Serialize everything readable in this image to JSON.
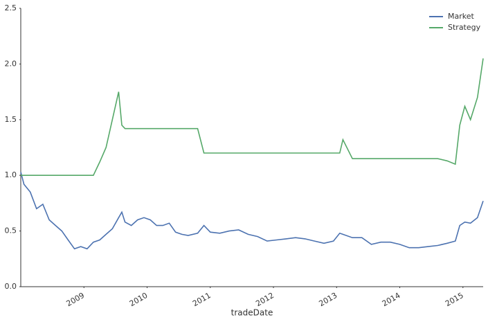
{
  "chart_data": {
    "type": "line",
    "x_label": "tradeDate",
    "x": [
      2008.0,
      2008.05,
      2008.15,
      2008.25,
      2008.35,
      2008.45,
      2008.55,
      2008.65,
      2008.75,
      2008.85,
      2008.95,
      2009.05,
      2009.15,
      2009.25,
      2009.35,
      2009.45,
      2009.55,
      2009.6,
      2009.65,
      2009.75,
      2009.85,
      2009.95,
      2010.05,
      2010.15,
      2010.25,
      2010.35,
      2010.45,
      2010.55,
      2010.65,
      2010.8,
      2010.9,
      2011.0,
      2011.15,
      2011.3,
      2011.45,
      2011.6,
      2011.75,
      2011.9,
      2012.05,
      2012.2,
      2012.35,
      2012.5,
      2012.65,
      2012.8,
      2012.95,
      2013.05,
      2013.1,
      2013.25,
      2013.4,
      2013.55,
      2013.7,
      2013.85,
      2014.0,
      2014.15,
      2014.3,
      2014.45,
      2014.6,
      2014.75,
      2014.88,
      2014.95,
      2015.03,
      2015.12,
      2015.23,
      2015.32
    ],
    "series": [
      {
        "name": "Market",
        "color": "#4c72b0",
        "values": [
          1.03,
          0.92,
          0.85,
          0.7,
          0.74,
          0.6,
          0.55,
          0.5,
          0.42,
          0.34,
          0.36,
          0.34,
          0.4,
          0.42,
          0.47,
          0.52,
          0.62,
          0.67,
          0.58,
          0.55,
          0.6,
          0.62,
          0.6,
          0.55,
          0.55,
          0.57,
          0.49,
          0.47,
          0.46,
          0.48,
          0.55,
          0.49,
          0.48,
          0.5,
          0.51,
          0.47,
          0.45,
          0.41,
          0.42,
          0.43,
          0.44,
          0.43,
          0.41,
          0.39,
          0.41,
          0.48,
          0.47,
          0.44,
          0.44,
          0.38,
          0.4,
          0.4,
          0.38,
          0.35,
          0.35,
          0.36,
          0.37,
          0.39,
          0.41,
          0.55,
          0.58,
          0.57,
          0.62,
          0.77
        ]
      },
      {
        "name": "Strategy",
        "color": "#55a868",
        "values": [
          1.0,
          1.0,
          1.0,
          1.0,
          1.0,
          1.0,
          1.0,
          1.0,
          1.0,
          1.0,
          1.0,
          1.0,
          1.0,
          1.12,
          1.25,
          1.5,
          1.75,
          1.45,
          1.42,
          1.42,
          1.42,
          1.42,
          1.42,
          1.42,
          1.42,
          1.42,
          1.42,
          1.42,
          1.42,
          1.42,
          1.2,
          1.2,
          1.2,
          1.2,
          1.2,
          1.2,
          1.2,
          1.2,
          1.2,
          1.2,
          1.2,
          1.2,
          1.2,
          1.2,
          1.2,
          1.2,
          1.32,
          1.15,
          1.15,
          1.15,
          1.15,
          1.15,
          1.15,
          1.15,
          1.15,
          1.15,
          1.15,
          1.13,
          1.1,
          1.45,
          1.62,
          1.5,
          1.7,
          2.05
        ]
      }
    ],
    "xlim": [
      2008.0,
      2015.32
    ],
    "xticks": [
      2009,
      2010,
      2011,
      2012,
      2013,
      2014,
      2015
    ],
    "ylim": [
      0,
      2.5
    ],
    "yticks": [
      {
        "value": 0,
        "label": "0.0"
      },
      0.5,
      {
        "value": 1,
        "label": "1.0"
      },
      1.5,
      {
        "value": 2,
        "label": "2.0"
      },
      2.5
    ],
    "grid": false,
    "legend": "upper right"
  }
}
